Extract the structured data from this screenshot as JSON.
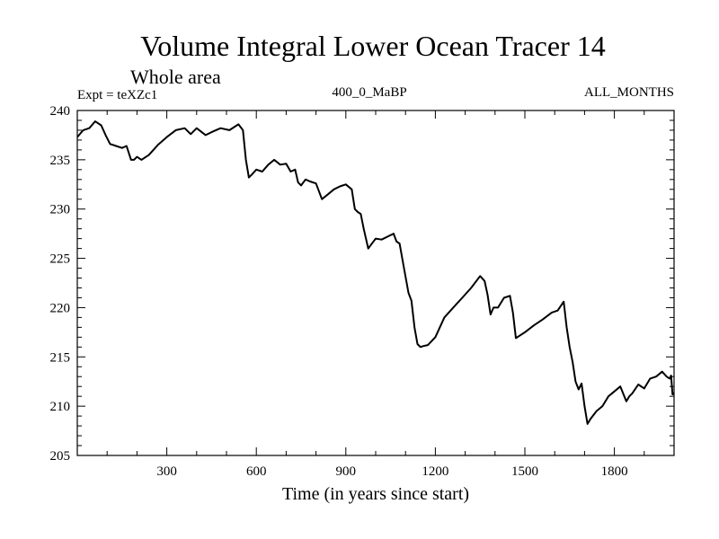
{
  "chart_data": {
    "type": "line",
    "title": "Volume Integral Lower Ocean Tracer 14",
    "subtitle": "Whole area",
    "left_label": "Expt = teXZc1",
    "center_label": "400_0_MaBP",
    "right_label": "ALL_MONTHS",
    "xlabel": "Time (in years since start)",
    "ylabel": "",
    "xlim": [
      0,
      2000
    ],
    "ylim": [
      205,
      240
    ],
    "x_ticks": [
      300,
      600,
      900,
      1200,
      1500,
      1800
    ],
    "x_tick_labels": [
      "300",
      "600",
      "900",
      "1200",
      "1500",
      "1800"
    ],
    "y_ticks": [
      205,
      210,
      215,
      220,
      225,
      230,
      235,
      240
    ],
    "y_tick_labels": [
      "205",
      "210",
      "215",
      "220",
      "225",
      "230",
      "235",
      "240"
    ],
    "grid": false,
    "line_color": "#000000",
    "series": [
      {
        "name": "Tracer 14",
        "x": [
          0,
          20,
          40,
          60,
          80,
          95,
          110,
          130,
          150,
          165,
          180,
          190,
          200,
          215,
          240,
          270,
          300,
          330,
          360,
          380,
          400,
          430,
          450,
          480,
          510,
          540,
          555,
          565,
          575,
          585,
          600,
          620,
          640,
          660,
          680,
          700,
          715,
          730,
          740,
          750,
          765,
          780,
          800,
          820,
          840,
          860,
          880,
          900,
          920,
          930,
          940,
          950,
          960,
          975,
          985,
          1000,
          1020,
          1040,
          1060,
          1070,
          1080,
          1095,
          1110,
          1120,
          1130,
          1140,
          1150,
          1160,
          1175,
          1200,
          1230,
          1260,
          1290,
          1320,
          1350,
          1365,
          1375,
          1385,
          1395,
          1410,
          1430,
          1450,
          1460,
          1470,
          1480,
          1500,
          1530,
          1560,
          1590,
          1610,
          1630,
          1640,
          1650,
          1660,
          1670,
          1680,
          1690,
          1700,
          1710,
          1720,
          1740,
          1760,
          1780,
          1800,
          1820,
          1840,
          1850,
          1860,
          1880,
          1900,
          1920,
          1940,
          1960,
          1975,
          1985,
          1990,
          1995,
          2000
        ],
        "values": [
          237.3,
          238.0,
          238.2,
          238.9,
          238.5,
          237.5,
          236.6,
          236.4,
          236.2,
          236.4,
          235.0,
          235.0,
          235.3,
          235.0,
          235.5,
          236.5,
          237.3,
          238.0,
          238.2,
          237.6,
          238.2,
          237.5,
          237.8,
          238.2,
          238.0,
          238.6,
          238.0,
          235.0,
          233.2,
          233.5,
          234.0,
          233.8,
          234.5,
          235.0,
          234.5,
          234.6,
          233.8,
          234.0,
          232.7,
          232.4,
          233.0,
          232.8,
          232.6,
          231.0,
          231.5,
          232.0,
          232.3,
          232.5,
          232.0,
          230.0,
          229.7,
          229.5,
          228.0,
          226.0,
          226.4,
          227.0,
          226.9,
          227.2,
          227.5,
          226.7,
          226.5,
          224.0,
          221.5,
          220.7,
          218.0,
          216.3,
          216.0,
          216.1,
          216.2,
          217.0,
          219.0,
          220.0,
          221.0,
          222.0,
          223.2,
          222.7,
          221.3,
          219.3,
          220.0,
          220.0,
          221.0,
          221.2,
          219.5,
          216.9,
          217.1,
          217.5,
          218.2,
          218.8,
          219.5,
          219.7,
          220.6,
          218.0,
          216.0,
          214.5,
          212.5,
          211.7,
          212.3,
          210.0,
          208.2,
          208.7,
          209.5,
          210.0,
          211.0,
          211.5,
          212.0,
          210.5,
          211.0,
          211.3,
          212.2,
          211.8,
          212.8,
          213.0,
          213.5,
          213.0,
          212.8,
          213.1,
          211.2,
          211.3
        ]
      }
    ]
  }
}
